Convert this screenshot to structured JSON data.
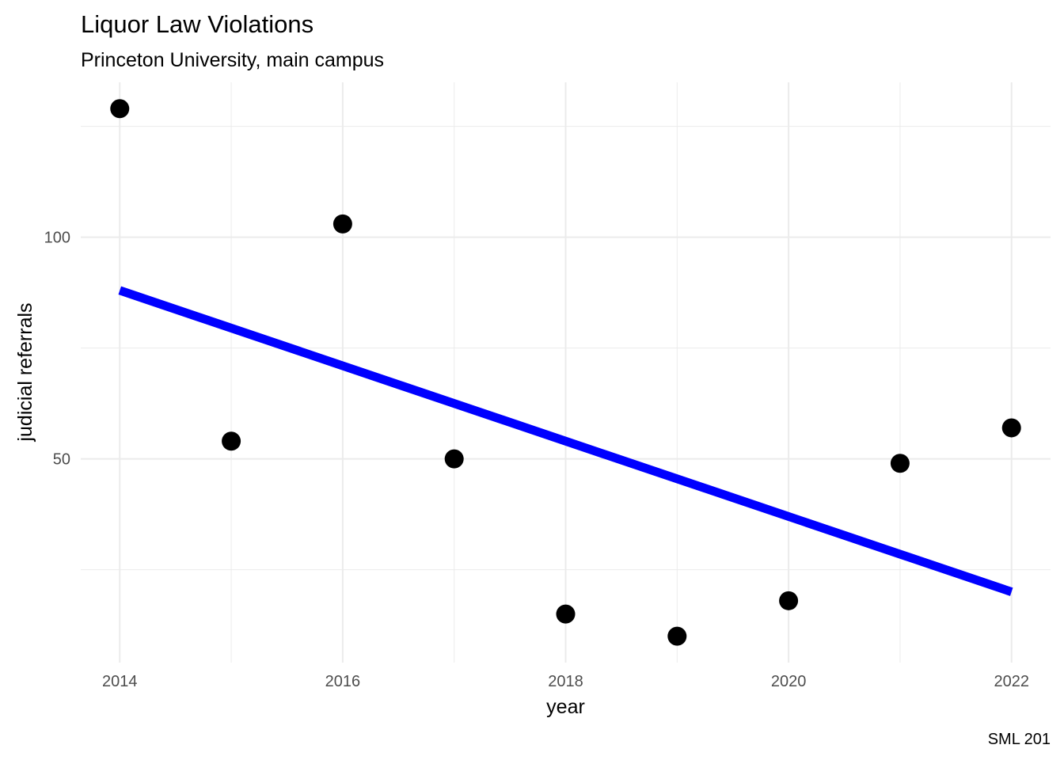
{
  "chart_data": {
    "type": "scatter",
    "title": "Liquor Law Violations",
    "subtitle": "Princeton University, main campus",
    "xlabel": "year",
    "ylabel": "judicial referrals",
    "caption": "SML 201",
    "x": [
      2014,
      2015,
      2016,
      2017,
      2018,
      2019,
      2020,
      2021,
      2022
    ],
    "values": [
      129,
      54,
      103,
      50,
      15,
      10,
      18,
      49,
      57
    ],
    "x_ticks": [
      2014,
      2016,
      2018,
      2020,
      2022
    ],
    "y_ticks": [
      50,
      100
    ],
    "xlim": [
      2013.65,
      2022.35
    ],
    "ylim": [
      4.04,
      134.94
    ],
    "grid": true,
    "legend": "none",
    "trend_line": {
      "method": "linear",
      "x": [
        2014,
        2022
      ],
      "y": [
        88,
        20
      ]
    },
    "point_color": "#000000",
    "line_color": "#0000ff",
    "grid_color": "#ebebeb"
  }
}
